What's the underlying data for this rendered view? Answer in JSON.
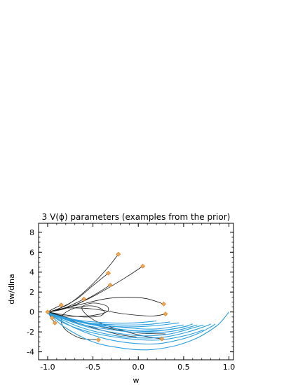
{
  "chart_data": {
    "type": "line",
    "title": "3 V(ϕ) parameters (examples from the prior)",
    "xlabel": "w",
    "ylabel": "dw/dlna",
    "xlim": [
      -1.1,
      1.05
    ],
    "ylim": [
      -4.8,
      8.9
    ],
    "xticks": [
      -1.0,
      -0.5,
      0.0,
      0.5,
      1.0
    ],
    "xtick_labels": [
      "-1.0",
      "-0.5",
      "0.0",
      "0.5",
      "1.0"
    ],
    "yticks": [
      -4,
      -2,
      0,
      2,
      4,
      6,
      8
    ],
    "ytick_labels": [
      "-4",
      "-2",
      "0",
      "2",
      "4",
      "6",
      "8"
    ],
    "grid": false,
    "legend": "none",
    "colors": {
      "black_series": "#1a1a1a",
      "blue_series": "#2a9fe0",
      "marker": "#f4a64a"
    },
    "series": [
      {
        "group": "black",
        "x": [
          -0.22,
          -0.35,
          -0.55,
          -0.75,
          -0.9,
          -0.97,
          -0.99
        ],
        "y": [
          5.8,
          4.3,
          2.4,
          0.9,
          0.25,
          0.05,
          0
        ]
      },
      {
        "group": "black",
        "x": [
          0.05,
          -0.15,
          -0.45,
          -0.7,
          -0.88,
          -0.96,
          -0.99
        ],
        "y": [
          4.6,
          3.4,
          1.8,
          0.7,
          0.2,
          0.05,
          0
        ]
      },
      {
        "group": "black",
        "x": [
          -0.33,
          -0.48,
          -0.68,
          -0.85,
          -0.95,
          -0.99
        ],
        "y": [
          3.9,
          2.8,
          1.3,
          0.45,
          0.1,
          0
        ]
      },
      {
        "group": "black",
        "x": [
          -0.31,
          -0.45,
          -0.65,
          -0.82,
          -0.94,
          -0.99
        ],
        "y": [
          2.7,
          1.9,
          0.9,
          0.3,
          0.08,
          0
        ]
      },
      {
        "group": "black",
        "x": [
          -0.6,
          -0.7,
          -0.8,
          -0.9,
          -0.96,
          -0.99
        ],
        "y": [
          1.3,
          0.85,
          0.45,
          0.2,
          0.05,
          0
        ]
      },
      {
        "group": "black",
        "x": [
          0.28,
          0.05,
          -0.3,
          -0.62,
          -0.85,
          -0.97,
          -0.99
        ],
        "y": [
          0.8,
          1.4,
          1.4,
          0.8,
          0.3,
          0.05,
          0
        ]
      },
      {
        "group": "black",
        "x": [
          0.3,
          0.15,
          -0.15,
          -0.5,
          -0.78,
          -0.93,
          -0.99
        ],
        "y": [
          -0.2,
          -0.4,
          -0.2,
          0.3,
          0.4,
          0.15,
          0
        ]
      },
      {
        "group": "black",
        "x": [
          -0.44,
          -0.65,
          -0.82,
          -0.84,
          -0.7,
          -0.5,
          -0.38,
          -0.42,
          -0.6,
          -0.8,
          -0.95,
          -0.99
        ],
        "y": [
          -2.8,
          -2.6,
          -1.6,
          -0.4,
          0.4,
          0.6,
          0.1,
          -0.4,
          -0.5,
          -0.3,
          -0.08,
          0
        ]
      },
      {
        "group": "black",
        "x": [
          0.26,
          0.05,
          -0.2,
          -0.45,
          -0.58,
          -0.62,
          -0.5,
          -0.35,
          -0.35,
          -0.55,
          -0.8,
          -0.95,
          -0.99
        ],
        "y": [
          -2.7,
          -2.4,
          -1.8,
          -1.0,
          -0.2,
          0.5,
          0.9,
          0.6,
          0.0,
          -0.4,
          -0.4,
          -0.1,
          0
        ]
      },
      {
        "group": "black",
        "x": [
          -0.02,
          -0.2,
          -0.45,
          -0.7,
          -0.87,
          -0.96,
          -0.99
        ],
        "y": [
          -2.5,
          -2.3,
          -1.7,
          -1.0,
          -0.4,
          -0.1,
          0
        ]
      },
      {
        "group": "black",
        "x": [
          0.3,
          0.0,
          -0.35,
          -0.65,
          -0.85,
          -0.96,
          -0.99
        ],
        "y": [
          -2.2,
          -2.1,
          -1.6,
          -0.9,
          -0.4,
          -0.1,
          0
        ]
      },
      {
        "group": "black",
        "x": [
          -0.92,
          -0.95,
          -0.98,
          -1.0
        ],
        "y": [
          -1.1,
          -0.7,
          -0.3,
          0
        ]
      },
      {
        "group": "black",
        "x": [
          -0.85,
          -0.92,
          -0.97,
          -0.99
        ],
        "y": [
          0.7,
          0.4,
          0.15,
          0
        ]
      },
      {
        "group": "blue",
        "x": [
          -1.0,
          -0.8,
          -0.5,
          -0.2,
          0.1,
          0.4,
          0.65,
          0.85,
          0.93,
          1.0
        ],
        "y": [
          -0.1,
          -1.6,
          -3.0,
          -3.6,
          -3.8,
          -3.4,
          -2.6,
          -1.5,
          -0.8,
          0.0
        ]
      },
      {
        "group": "blue",
        "x": [
          -1.0,
          -0.7,
          -0.4,
          -0.1,
          0.2,
          0.45,
          0.65,
          0.8,
          0.85
        ],
        "y": [
          -0.1,
          -1.6,
          -2.6,
          -3.1,
          -3.2,
          -2.8,
          -2.2,
          -1.5,
          -1.2
        ]
      },
      {
        "group": "blue",
        "x": [
          -1.0,
          -0.65,
          -0.3,
          0.0,
          0.3,
          0.55,
          0.75,
          0.8
        ],
        "y": [
          -0.1,
          -1.5,
          -2.3,
          -2.6,
          -2.5,
          -2.0,
          -1.4,
          -1.2
        ]
      },
      {
        "group": "blue",
        "x": [
          -1.0,
          -0.6,
          -0.25,
          0.05,
          0.35,
          0.6,
          0.72
        ],
        "y": [
          -0.1,
          -1.4,
          -2.1,
          -2.4,
          -2.2,
          -1.6,
          -1.3
        ]
      },
      {
        "group": "blue",
        "x": [
          -1.0,
          -0.6,
          -0.2,
          0.1,
          0.4,
          0.65
        ],
        "y": [
          -0.1,
          -1.3,
          -1.9,
          -2.1,
          -1.9,
          -1.3
        ]
      },
      {
        "group": "blue",
        "x": [
          -1.0,
          -0.55,
          -0.15,
          0.15,
          0.45,
          0.6
        ],
        "y": [
          -0.1,
          -1.2,
          -1.8,
          -1.95,
          -1.6,
          -1.2
        ]
      },
      {
        "group": "blue",
        "x": [
          -1.0,
          -0.55,
          -0.1,
          0.2,
          0.5
        ],
        "y": [
          -0.1,
          -1.1,
          -1.6,
          -1.7,
          -1.3
        ]
      },
      {
        "group": "blue",
        "x": [
          -1.0,
          -0.7,
          -0.3,
          0.0,
          0.3,
          0.55
        ],
        "y": [
          -0.1,
          -0.9,
          -1.6,
          -1.9,
          -1.8,
          -1.4
        ]
      },
      {
        "group": "blue",
        "x": [
          -1.0,
          -0.75,
          -0.45,
          -0.15,
          0.15,
          0.45
        ],
        "y": [
          -0.1,
          -0.8,
          -1.3,
          -1.5,
          -1.4,
          -1.1
        ]
      },
      {
        "group": "blue",
        "x": [
          -1.0,
          -0.8,
          -0.55,
          -0.2,
          0.1,
          0.35
        ],
        "y": [
          -0.05,
          -0.6,
          -1.1,
          -1.3,
          -1.25,
          -1.0
        ]
      },
      {
        "group": "blue",
        "x": [
          -1.0,
          -0.8,
          -0.5,
          -0.1,
          0.25,
          0.55,
          0.72
        ],
        "y": [
          -0.1,
          -1.2,
          -2.1,
          -2.7,
          -2.8,
          -2.3,
          -1.8
        ]
      },
      {
        "group": "blue",
        "x": [
          -1.0,
          -0.85,
          -0.6,
          -0.3,
          -0.05,
          0.2
        ],
        "y": [
          -0.05,
          -0.5,
          -0.9,
          -1.1,
          -1.1,
          -0.9
        ]
      }
    ],
    "markers": {
      "x": [
        -0.22,
        0.05,
        -0.33,
        -0.31,
        -0.6,
        0.28,
        0.3,
        -0.44,
        0.26,
        -0.85,
        -0.92,
        -1.0,
        -0.95
      ],
      "y": [
        5.8,
        4.6,
        3.9,
        2.7,
        1.3,
        0.8,
        -0.2,
        -2.8,
        -2.7,
        0.7,
        -1.1,
        0.0,
        -0.6
      ]
    }
  }
}
